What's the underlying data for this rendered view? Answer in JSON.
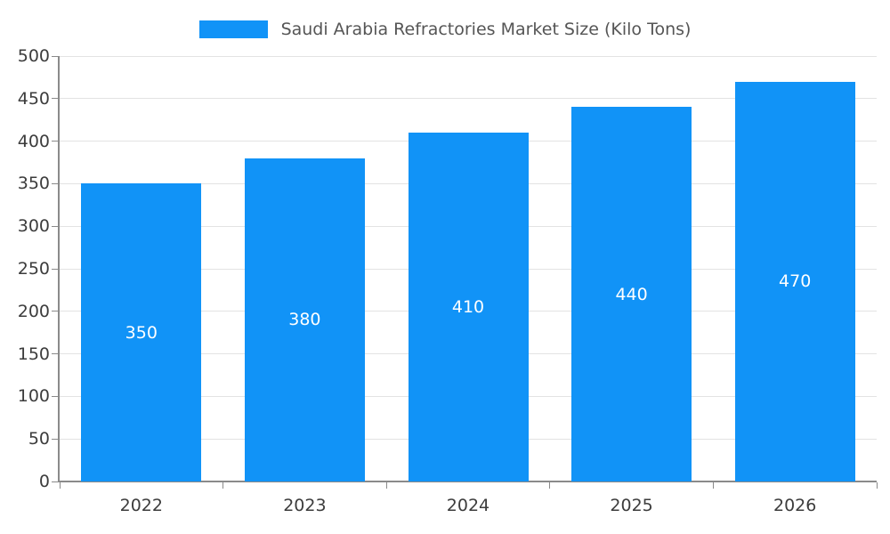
{
  "legend": {
    "label": "Saudi Arabia Refractories Market Size (Kilo Tons)"
  },
  "chart_data": {
    "type": "bar",
    "title": "Saudi Arabia Refractories Market Size (Kilo Tons)",
    "categories": [
      "2022",
      "2023",
      "2024",
      "2025",
      "2026"
    ],
    "values": [
      350,
      380,
      410,
      440,
      470
    ],
    "xlabel": "",
    "ylabel": "",
    "ylim": [
      0,
      500
    ],
    "ytick_step": 50,
    "grid": true,
    "legend_position": "top",
    "bar_color": "#1193f7",
    "value_label_color": "#ffffff"
  },
  "colors": {
    "background": "#ffffff",
    "bar": "#1193f7",
    "gridline": "#e3e3e3",
    "axis": "#8a8a8a",
    "tick_text": "#3c3c3c",
    "legend_text": "#555555"
  }
}
